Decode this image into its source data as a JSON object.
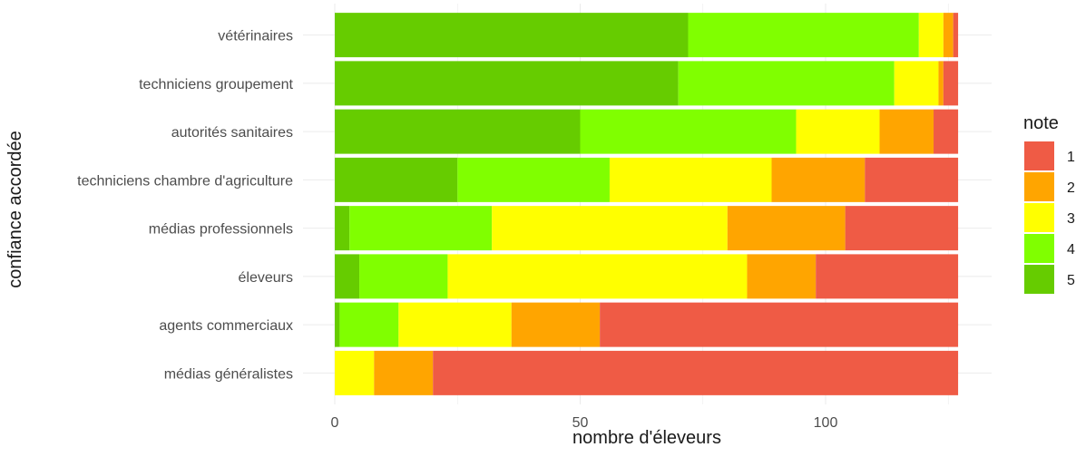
{
  "chart_data": {
    "type": "bar",
    "orientation": "horizontal",
    "stacked": true,
    "xlabel": "nombre d'éleveurs",
    "ylabel": "confiance accordée",
    "xlim": [
      0,
      127
    ],
    "x_ticks": [
      0,
      50,
      100
    ],
    "grid": true,
    "legend_position": "right",
    "legend_title": "note",
    "categories": [
      "vétérinaires",
      "techniciens groupement",
      "autorités sanitaires",
      "techniciens chambre d'agriculture",
      "médias professionnels",
      "éleveurs",
      "agents commerciaux",
      "médias généralistes"
    ],
    "series": [
      {
        "name": "5",
        "color": "#66cc00",
        "values": [
          72,
          70,
          50,
          25,
          3,
          5,
          1,
          0
        ]
      },
      {
        "name": "4",
        "color": "#80ff00",
        "values": [
          47,
          44,
          44,
          31,
          29,
          18,
          12,
          0
        ]
      },
      {
        "name": "3",
        "color": "#ffff00",
        "values": [
          5,
          9,
          17,
          33,
          48,
          61,
          23,
          8
        ]
      },
      {
        "name": "2",
        "color": "#ffa500",
        "values": [
          2,
          1,
          11,
          19,
          24,
          14,
          18,
          12
        ]
      },
      {
        "name": "1",
        "color": "#ef5b45",
        "values": [
          1,
          3,
          5,
          19,
          23,
          29,
          73,
          107
        ]
      }
    ],
    "legend_order": [
      "1",
      "2",
      "3",
      "4",
      "5"
    ]
  }
}
